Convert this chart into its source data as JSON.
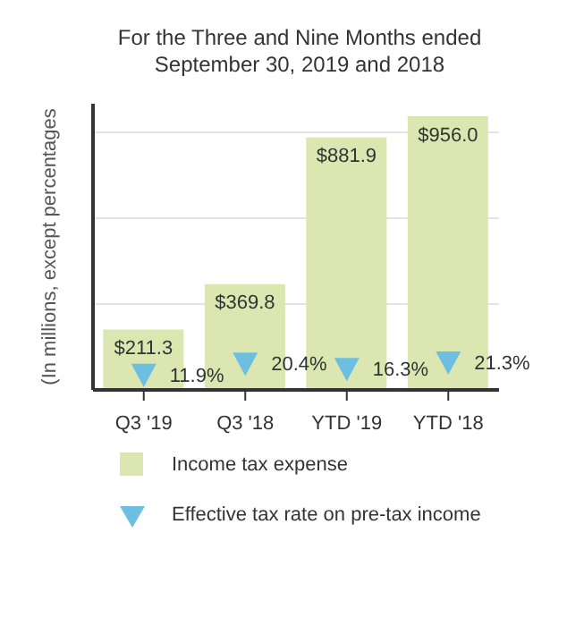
{
  "chart_data": {
    "type": "bar",
    "title": "For the Three and Nine Months ended September 30, 2019 and 2018",
    "ylabel": "(In millions, except percentages",
    "categories": [
      "Q3 '19",
      "Q3 '18",
      "YTD '19",
      "YTD '18"
    ],
    "series": [
      {
        "name": "Income tax expense",
        "color": "#dce6b0",
        "values": [
          211.3,
          369.8,
          881.9,
          956.0
        ],
        "value_labels": [
          "$211.3",
          "$369.8",
          "$881.9",
          "$956.0"
        ]
      },
      {
        "name": "Effective tax rate on pre-tax income",
        "type": "scatter",
        "axis": "y2",
        "marker": "triangle",
        "color": "#6cbfe0",
        "values": [
          11.9,
          20.4,
          16.3,
          21.3
        ],
        "value_labels": [
          "11.9%",
          "20.4%",
          "16.3%",
          "21.3%"
        ]
      }
    ],
    "ylim": [
      0,
      1000
    ],
    "yticks": [
      {
        "value": 0,
        "label": null
      },
      {
        "value": 300,
        "label": null
      },
      {
        "value": 600,
        "label": null
      },
      {
        "value": 900,
        "label": null
      }
    ],
    "y2lim": [
      0,
      220
    ],
    "tick_labels": "x",
    "grid": "y",
    "legend": "bottom"
  }
}
